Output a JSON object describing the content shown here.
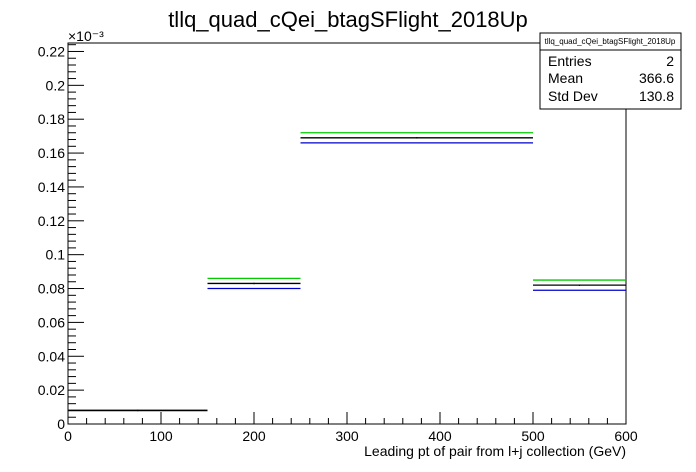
{
  "title": "tllq_quad_cQei_btagSFlight_2018Up",
  "stats_box": {
    "name": "tllq_quad_cQei_btagSFlight_2018Up",
    "rows": [
      {
        "label": "Entries",
        "value": "2"
      },
      {
        "label": "Mean",
        "value": "366.6"
      },
      {
        "label": "Std Dev",
        "value": "130.8"
      }
    ]
  },
  "chart_data": {
    "type": "histogram",
    "title": "tllq_quad_cQei_btagSFlight_2018Up",
    "xlabel": "Leading pt of pair from l+j collection (GeV)",
    "ylabel": "",
    "y_exponent_label": "×10⁻³",
    "xlim": [
      0,
      600
    ],
    "ylim": [
      0,
      0.225
    ],
    "x_ticks": [
      0,
      100,
      200,
      300,
      400,
      500,
      600
    ],
    "y_ticks": [
      0,
      0.02,
      0.04,
      0.06,
      0.08,
      0.1,
      0.12,
      0.14,
      0.16,
      0.18,
      0.2,
      0.22
    ],
    "bins": [
      {
        "x0": 0,
        "x1": 150
      },
      {
        "x0": 150,
        "x1": 250
      },
      {
        "x0": 250,
        "x1": 500
      },
      {
        "x0": 500,
        "x1": 600
      }
    ],
    "series": [
      {
        "color": "#000000",
        "values": [
          0.008,
          0.083,
          0.169,
          0.082
        ]
      },
      {
        "color": "#00cc00",
        "values": [
          0.008,
          0.086,
          0.172,
          0.085
        ]
      },
      {
        "color": "#0000cc",
        "values": [
          0.008,
          0.08,
          0.166,
          0.079
        ]
      }
    ],
    "grid": false,
    "legend": "top-right"
  }
}
